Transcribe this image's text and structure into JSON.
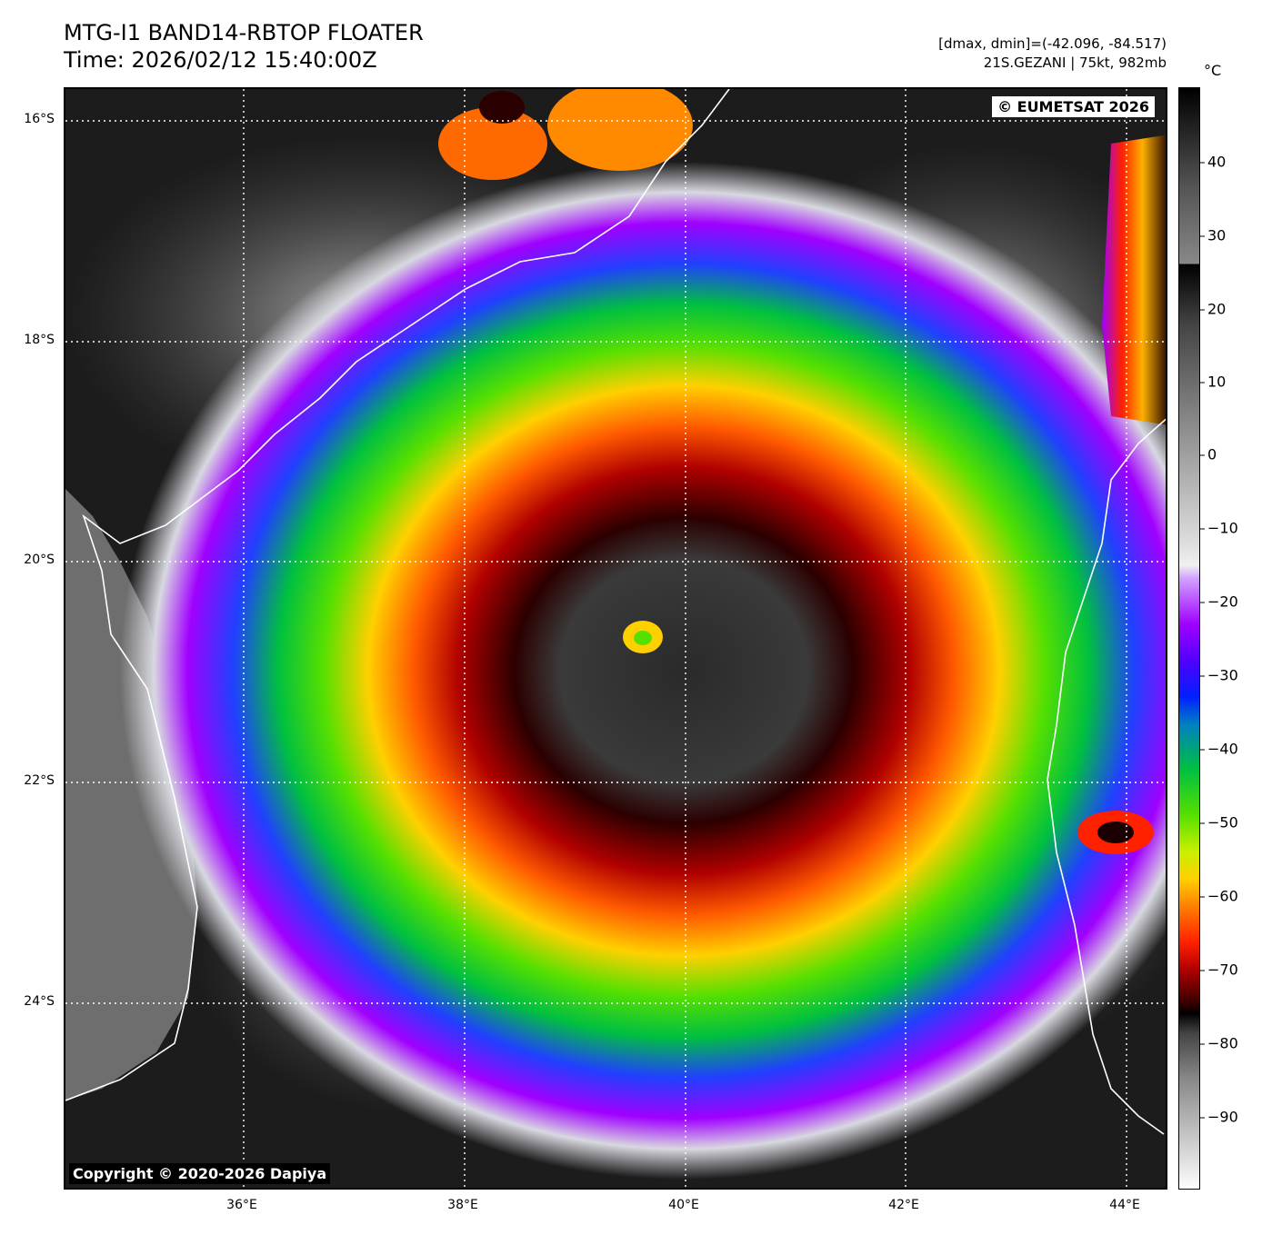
{
  "header": {
    "title_line1": "MTG-I1 BAND14-RBTOP FLOATER",
    "title_line2": "Time: 2026/02/12 15:40:00Z",
    "range_text": "[dmax, dmin]=(-42.096, -84.517)",
    "storm_text": "21S.GEZANI | 75kt, 982mb"
  },
  "map": {
    "stamp": "© EUMETSAT 2026",
    "copyright": "Copyright © 2020-2026 Dapiya",
    "lat_labels": [
      "16°S",
      "18°S",
      "20°S",
      "22°S",
      "24°S"
    ],
    "lon_labels": [
      "36°E",
      "38°E",
      "40°E",
      "42°E",
      "44°E"
    ]
  },
  "colorbar": {
    "unit": "°C",
    "ticks": [
      "40",
      "30",
      "20",
      "10",
      "0",
      "−10",
      "−20",
      "−30",
      "−40",
      "−50",
      "−60",
      "−70",
      "−80",
      "−90"
    ]
  }
}
